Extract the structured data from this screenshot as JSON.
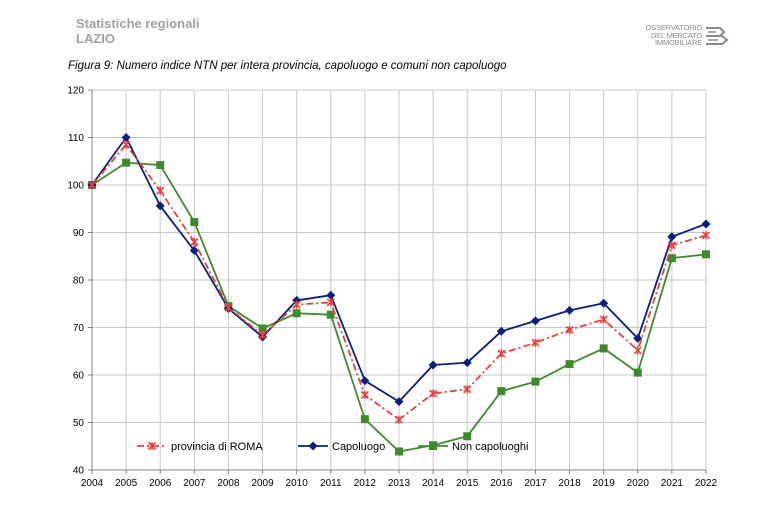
{
  "header": {
    "line1": "Statistiche regionali",
    "line2": "LAZIO"
  },
  "logo": {
    "line1": "OSSERVATORIO",
    "line2": "DEL MERCATO",
    "line3": "IMMOBILIARE"
  },
  "caption": "Figura 9: Numero indice NTN per intera provincia, capoluogo e comuni non capoluogo",
  "chart_data": {
    "type": "line",
    "title": "",
    "xlabel": "",
    "ylabel": "",
    "ylim": [
      40,
      120
    ],
    "yticks": [
      "40",
      "50",
      "60",
      "70",
      "80",
      "90",
      "100",
      "110",
      "120"
    ],
    "x": [
      "2004",
      "2005",
      "2006",
      "2007",
      "2008",
      "2009",
      "2010",
      "2011",
      "2012",
      "2013",
      "2014",
      "2015",
      "2016",
      "2017",
      "2018",
      "2019",
      "2020",
      "2021",
      "2022"
    ],
    "grid": true,
    "legend_position": "bottom-left inside",
    "series": [
      {
        "name": "provincia di ROMA",
        "color": "#e8403a",
        "marker": "asterisk",
        "dash": "dashdot",
        "values": [
          100,
          108.5,
          98.8,
          88,
          74.2,
          68.4,
          74.8,
          75.3,
          55.8,
          50.6,
          56.1,
          57,
          64.5,
          66.8,
          69.5,
          71.7,
          65.2,
          87.3,
          89.4
        ]
      },
      {
        "name": "Capoluogo",
        "color": "#0a1f7a",
        "marker": "diamond",
        "dash": "solid",
        "values": [
          100,
          110,
          95.6,
          86.2,
          74,
          68,
          75.7,
          76.8,
          58.8,
          54.4,
          62.1,
          62.6,
          69.2,
          71.4,
          73.6,
          75.1,
          67.7,
          89.1,
          91.8
        ]
      },
      {
        "name": "Non capoluoghi",
        "color": "#3f8a2f",
        "marker": "square",
        "dash": "solid",
        "values": [
          100,
          104.7,
          104.2,
          92.2,
          74.5,
          69.8,
          73,
          72.7,
          50.7,
          43.9,
          45.2,
          47.1,
          56.6,
          58.6,
          62.3,
          65.6,
          60.5,
          84.6,
          85.4
        ]
      }
    ]
  }
}
